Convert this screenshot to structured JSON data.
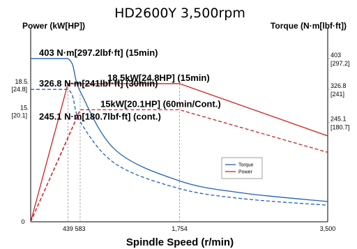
{
  "chart_data": {
    "type": "line",
    "title": "HD2600Y 3,500rpm",
    "xlabel": "Spindle Speed (r/min)",
    "ylabel_left": "Power (kW[HP])",
    "ylabel_right": "Torque (N·m[lbf·ft])",
    "x_ticks": [
      {
        "value": 0,
        "label": "0"
      },
      {
        "value": 439,
        "label": "439"
      },
      {
        "value": 583,
        "label": "583"
      },
      {
        "value": 1754,
        "label": "1,754"
      },
      {
        "value": 3500,
        "label": "3,500"
      }
    ],
    "left_ticks": [
      {
        "value": 18.5,
        "label": "18.5",
        "sublabel": "[24.8]"
      },
      {
        "value": 15,
        "label": "15",
        "sublabel": "[20.1]"
      }
    ],
    "right_ticks": [
      {
        "value": 403,
        "label": "403",
        "sublabel": "[297.2]"
      },
      {
        "value": 326.8,
        "label": "326.8",
        "sublabel": "[241]"
      },
      {
        "value": 245.1,
        "label": "245.1",
        "sublabel": "[180.7]"
      }
    ],
    "xlim": [
      0,
      3500
    ],
    "power_ylim": [
      0,
      25.5
    ],
    "torque_ylim": [
      0,
      470
    ],
    "annotations": [
      {
        "text": "403 N·m[297.2lbf·ft] (15min)",
        "series": "torque",
        "value": 403
      },
      {
        "text": "18.5kW[24.8HP] (15min)",
        "series": "power",
        "value": 18.5
      },
      {
        "text": "326.8 N·m[241lbf·ft] (30min)",
        "series": "torque",
        "value": 326.8
      },
      {
        "text": "15kW[20.1HP] (60min/Cont.)",
        "series": "power",
        "value": 15
      },
      {
        "text": "245.1 N·m[180.7lbf·ft] (cont.)",
        "series": "torque",
        "value": 245.1
      }
    ],
    "series": [
      {
        "name": "Torque",
        "axis": "right",
        "color": "#2060b0",
        "style": "solid",
        "points": [
          [
            0,
            403
          ],
          [
            439,
            403
          ],
          [
            583,
            322
          ],
          [
            1000,
            177
          ],
          [
            1754,
            101
          ],
          [
            2500,
            71
          ],
          [
            3500,
            50
          ]
        ]
      },
      {
        "name": "Power",
        "axis": "left",
        "color": "#d02020",
        "style": "solid",
        "points": [
          [
            0,
            0
          ],
          [
            439,
            18.5
          ],
          [
            1754,
            18.5
          ],
          [
            3500,
            11.5
          ]
        ]
      },
      {
        "axis": "right",
        "color": "#2060b0",
        "style": "dashed",
        "points": [
          [
            0,
            326.8
          ],
          [
            439,
            326.8
          ],
          [
            583,
            247
          ],
          [
            1000,
            143
          ],
          [
            1754,
            82
          ],
          [
            2500,
            57
          ],
          [
            3500,
            41
          ]
        ]
      },
      {
        "axis": "left",
        "color": "#d02020",
        "style": "dashed",
        "points": [
          [
            0,
            0
          ],
          [
            583,
            15
          ],
          [
            1754,
            15
          ],
          [
            3500,
            9.3
          ]
        ]
      },
      {
        "axis": "left",
        "color": "#d02020",
        "style": "dashed",
        "points": [
          [
            0,
            0
          ],
          [
            439,
            11.2
          ],
          [
            583,
            15
          ]
        ]
      }
    ],
    "legend": {
      "position": "center-right",
      "entries": [
        "Torque",
        "Power"
      ]
    },
    "grid": false
  }
}
